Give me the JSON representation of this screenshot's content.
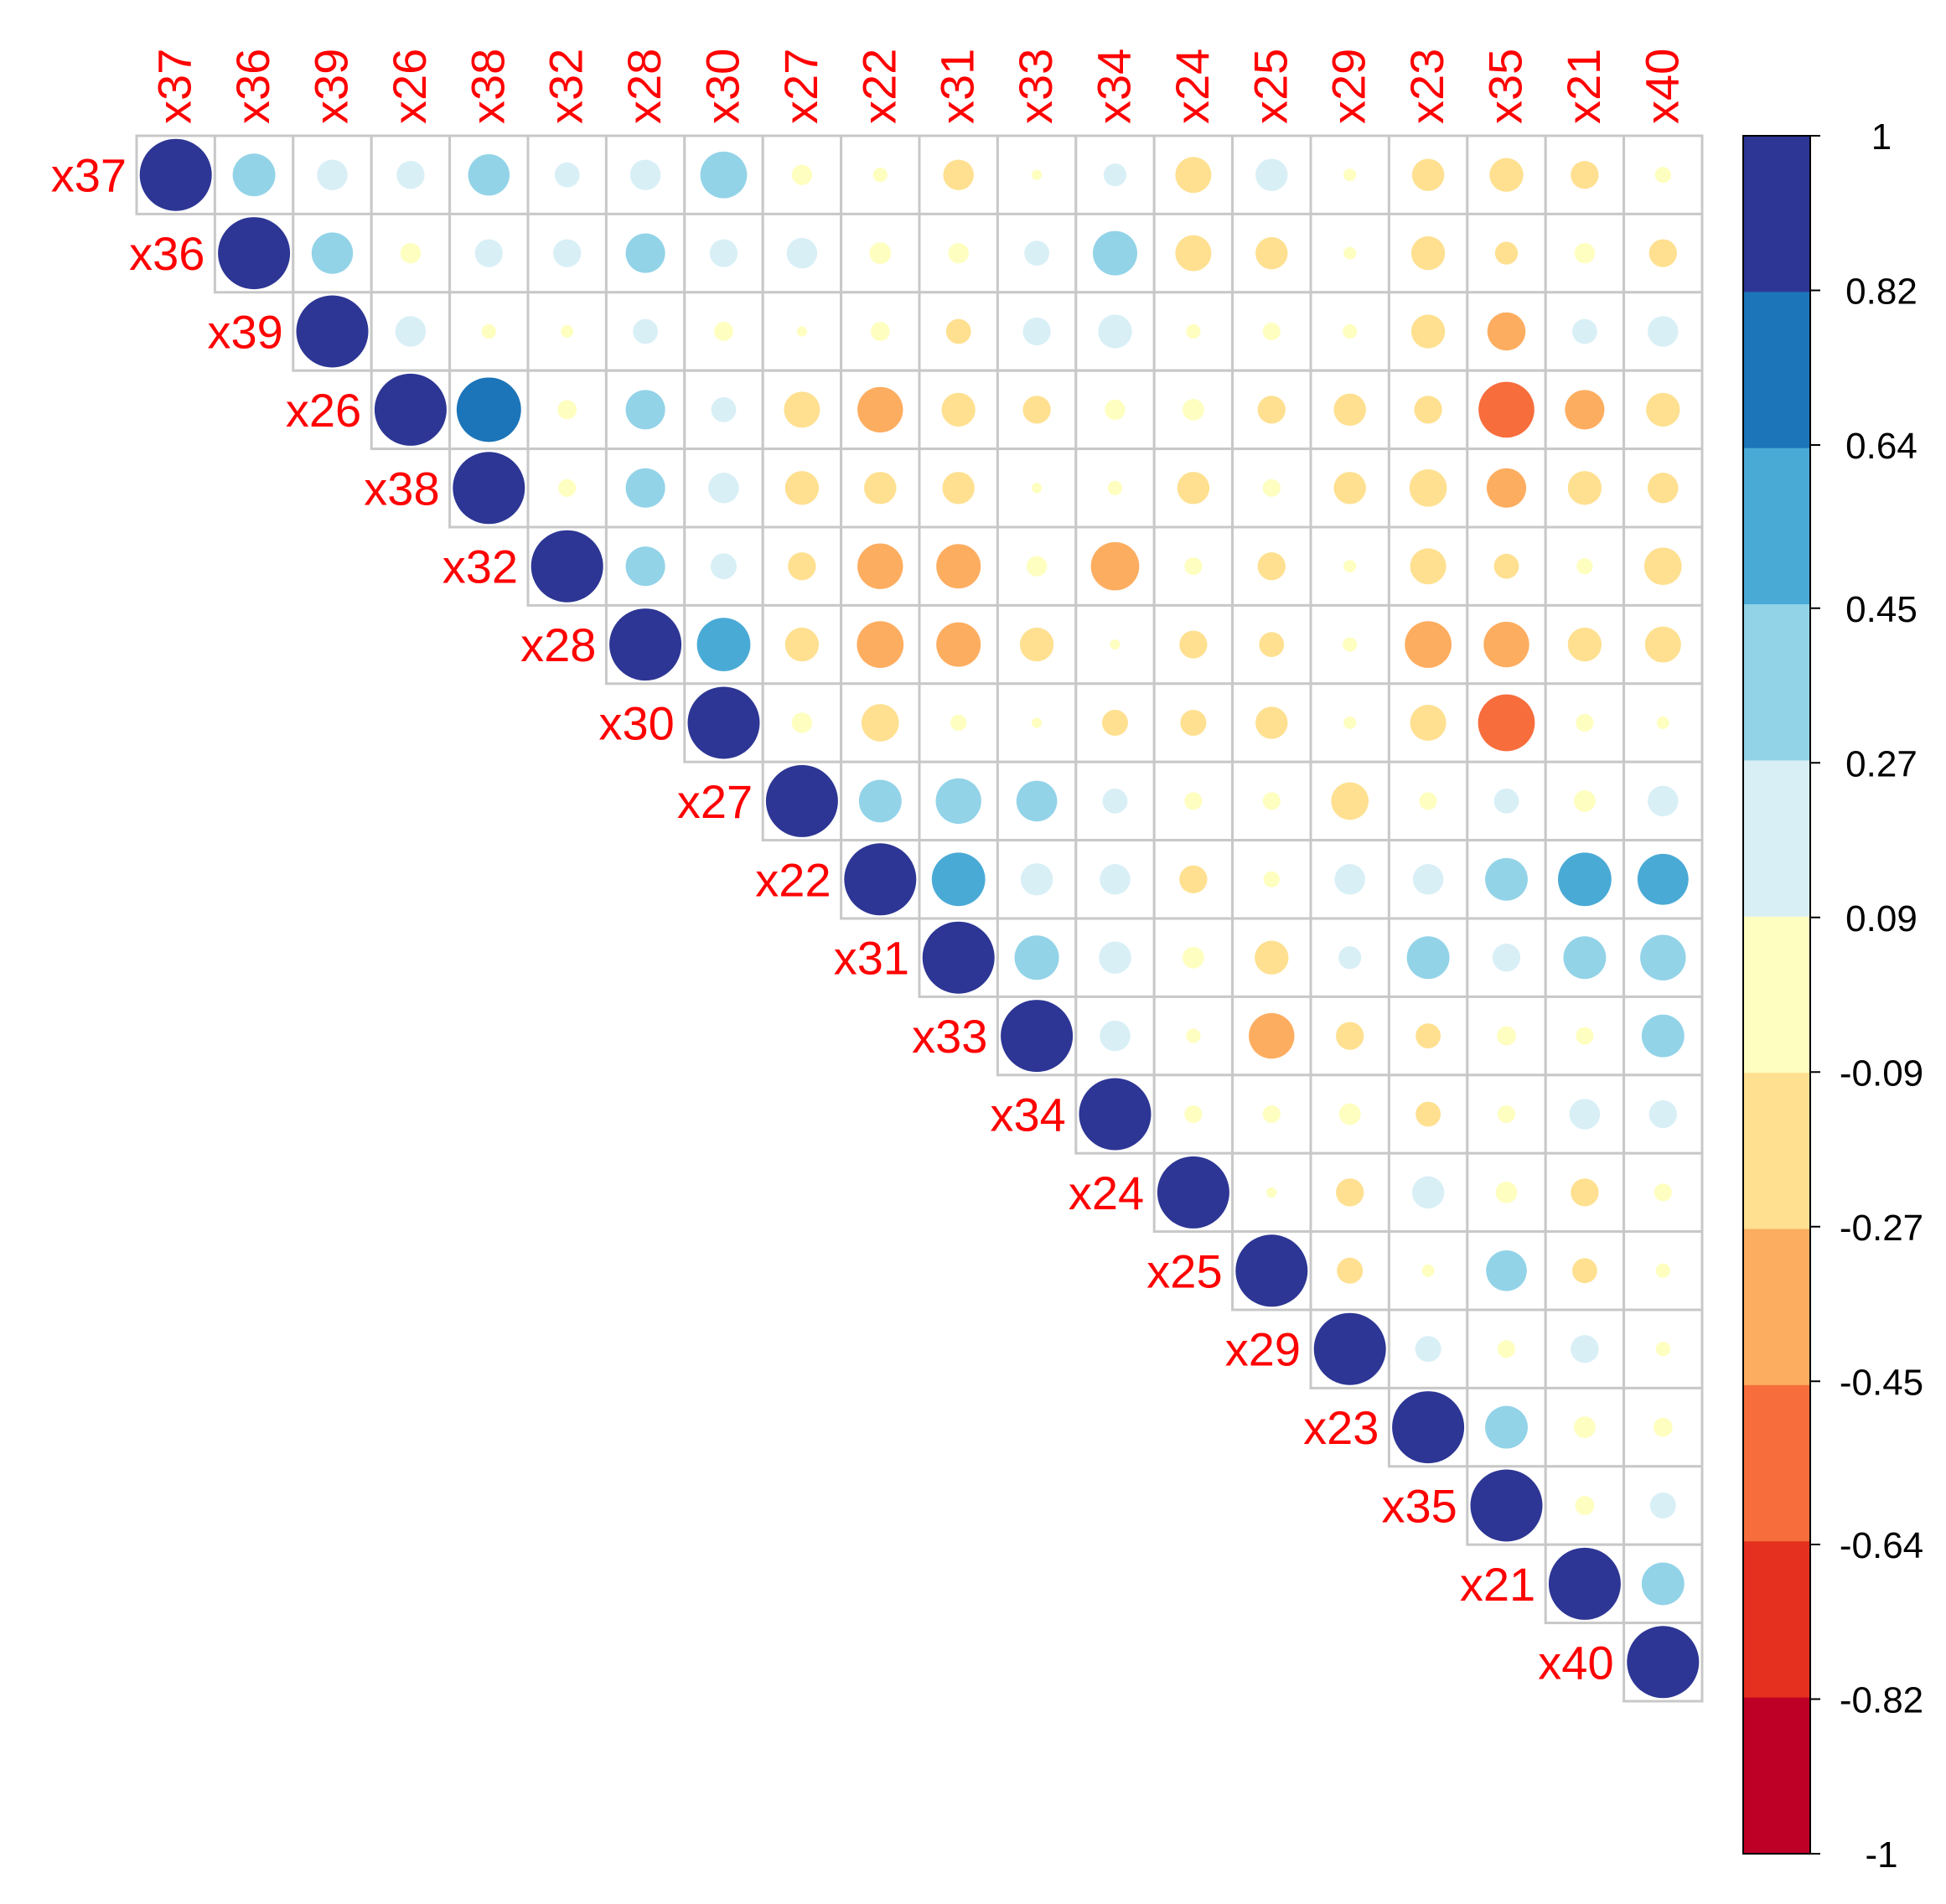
{
  "chart_data": {
    "type": "heatmap",
    "subtype": "correlation-circles-upper-triangle",
    "title": "",
    "variables": [
      "x37",
      "x36",
      "x39",
      "x26",
      "x38",
      "x32",
      "x28",
      "x30",
      "x27",
      "x22",
      "x31",
      "x33",
      "x34",
      "x24",
      "x25",
      "x29",
      "x23",
      "x35",
      "x21",
      "x40"
    ],
    "matrix": [
      [
        1.0,
        0.35,
        0.18,
        0.15,
        0.33,
        0.12,
        0.18,
        0.42,
        -0.08,
        -0.04,
        -0.18,
        -0.02,
        0.1,
        -0.25,
        0.2,
        -0.03,
        -0.2,
        -0.22,
        -0.15,
        -0.05
      ],
      [
        null,
        1.0,
        0.33,
        0.08,
        0.15,
        0.15,
        0.3,
        0.15,
        0.18,
        0.09,
        -0.08,
        0.12,
        0.38,
        -0.25,
        -0.2,
        -0.03,
        -0.22,
        -0.1,
        -0.08,
        -0.15
      ],
      [
        null,
        null,
        1.0,
        0.18,
        -0.04,
        -0.03,
        0.12,
        0.07,
        -0.02,
        -0.07,
        -0.12,
        0.15,
        0.22,
        -0.04,
        -0.06,
        -0.04,
        -0.22,
        -0.28,
        0.12,
        0.18
      ],
      [
        null,
        null,
        null,
        1.0,
        0.8,
        0.07,
        0.3,
        0.12,
        -0.25,
        -0.4,
        -0.22,
        -0.15,
        -0.08,
        -0.09,
        -0.15,
        -0.2,
        -0.15,
        -0.6,
        -0.3,
        -0.22
      ],
      [
        null,
        null,
        null,
        null,
        1.0,
        0.06,
        0.3,
        0.18,
        -0.22,
        -0.2,
        -0.2,
        -0.02,
        -0.04,
        -0.2,
        -0.06,
        -0.2,
        -0.27,
        -0.3,
        -0.22,
        -0.18
      ],
      [
        null,
        null,
        null,
        null,
        null,
        1.0,
        0.3,
        0.13,
        -0.15,
        -0.4,
        -0.38,
        -0.08,
        -0.45,
        -0.06,
        -0.15,
        -0.03,
        -0.25,
        -0.12,
        -0.05,
        -0.27
      ],
      [
        null,
        null,
        null,
        null,
        null,
        null,
        1.0,
        0.55,
        -0.22,
        -0.42,
        -0.38,
        -0.22,
        -0.02,
        -0.15,
        -0.12,
        -0.04,
        -0.42,
        -0.4,
        -0.22,
        -0.25
      ],
      [
        null,
        null,
        null,
        null,
        null,
        null,
        null,
        1.0,
        -0.08,
        -0.27,
        -0.05,
        -0.02,
        -0.13,
        -0.13,
        -0.2,
        -0.03,
        -0.25,
        -0.62,
        -0.06,
        -0.03
      ],
      [
        null,
        null,
        null,
        null,
        null,
        null,
        null,
        null,
        1.0,
        0.35,
        0.4,
        0.32,
        0.12,
        -0.06,
        -0.06,
        -0.27,
        -0.06,
        0.12,
        0.09,
        0.18
      ],
      [
        null,
        null,
        null,
        null,
        null,
        null,
        null,
        null,
        null,
        1.0,
        0.55,
        0.2,
        0.18,
        -0.15,
        -0.05,
        0.18,
        0.18,
        0.35,
        0.55,
        0.5
      ],
      [
        null,
        null,
        null,
        null,
        null,
        null,
        null,
        null,
        null,
        null,
        1.0,
        0.38,
        0.2,
        0.09,
        -0.22,
        0.1,
        0.35,
        0.15,
        0.35,
        0.4
      ],
      [
        null,
        null,
        null,
        null,
        null,
        null,
        null,
        null,
        null,
        null,
        null,
        1.0,
        0.18,
        -0.04,
        -0.4,
        -0.15,
        -0.12,
        -0.07,
        -0.06,
        0.35
      ],
      [
        null,
        null,
        null,
        null,
        null,
        null,
        null,
        null,
        null,
        null,
        null,
        null,
        1.0,
        -0.06,
        -0.06,
        0.09,
        -0.12,
        -0.06,
        0.18,
        0.15
      ],
      [
        null,
        null,
        null,
        null,
        null,
        null,
        null,
        null,
        null,
        null,
        null,
        null,
        null,
        1.0,
        -0.02,
        -0.15,
        0.2,
        -0.09,
        -0.15,
        -0.06
      ],
      [
        null,
        null,
        null,
        null,
        null,
        null,
        null,
        null,
        null,
        null,
        null,
        null,
        null,
        null,
        1.0,
        -0.13,
        -0.03,
        0.32,
        -0.12,
        -0.04
      ],
      [
        null,
        null,
        null,
        null,
        null,
        null,
        null,
        null,
        null,
        null,
        null,
        null,
        null,
        null,
        null,
        1.0,
        0.13,
        -0.06,
        0.15,
        -0.04
      ],
      [
        null,
        null,
        null,
        null,
        null,
        null,
        null,
        null,
        null,
        null,
        null,
        null,
        null,
        null,
        null,
        null,
        1.0,
        0.35,
        -0.09,
        0.07
      ],
      [
        null,
        null,
        null,
        null,
        null,
        null,
        null,
        null,
        null,
        null,
        null,
        null,
        null,
        null,
        null,
        null,
        null,
        1.0,
        0.07,
        0.13
      ],
      [
        null,
        null,
        null,
        null,
        null,
        null,
        null,
        null,
        null,
        null,
        null,
        null,
        null,
        null,
        null,
        null,
        null,
        null,
        1.0,
        0.35
      ],
      [
        null,
        null,
        null,
        null,
        null,
        null,
        null,
        null,
        null,
        null,
        null,
        null,
        null,
        null,
        null,
        null,
        null,
        null,
        null,
        1.0
      ]
    ],
    "colorbar": {
      "range": [
        -1,
        1
      ],
      "tick_labels": [
        "1",
        "0.82",
        "0.64",
        "0.45",
        "0.27",
        "0.09",
        "-0.09",
        "-0.27",
        "-0.45",
        "-0.64",
        "-0.82",
        "-1"
      ],
      "colors_top_to_bottom": [
        "#2d3694",
        "#1c75b9",
        "#4aaad6",
        "#92d3e8",
        "#d8eff6",
        "#fefec0",
        "#fee090",
        "#fdad60",
        "#f76d3c",
        "#e52f1f",
        "#bf0026"
      ]
    },
    "label_color": "#ff0000",
    "grid_color": "#c8c8c8"
  }
}
